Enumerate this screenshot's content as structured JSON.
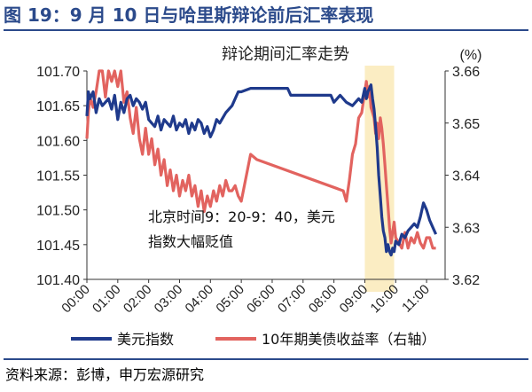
{
  "figure_title": "图 19：9 月 10 日与哈里斯辩论前后汇率表现",
  "source_note": "资料来源：彭博，申万宏源研究",
  "colors": {
    "title": "#2b4a8b",
    "dxy": "#1f3a8c",
    "yield": "#e2635f",
    "band": "#fbedc3",
    "axis": "#333333"
  },
  "chart_data": {
    "type": "line",
    "title": "辩论期间汇率走势",
    "right_unit": "(%)",
    "x_ticks": [
      "00:00",
      "01:00",
      "02:00",
      "03:00",
      "04:00",
      "05:00",
      "06:00",
      "07:00",
      "08:00",
      "09:00",
      "10:00",
      "11:00"
    ],
    "xlim": [
      0,
      11.6
    ],
    "y_left": {
      "ticks": [
        "101.70",
        "101.65",
        "101.60",
        "101.55",
        "101.50",
        "101.45",
        "101.40"
      ],
      "lim": [
        101.4,
        101.7
      ]
    },
    "y_right": {
      "ticks": [
        "3.66",
        "3.65",
        "3.64",
        "3.63",
        "3.62"
      ],
      "lim": [
        3.62,
        3.66
      ]
    },
    "highlight": {
      "x_from": 9.0,
      "x_to": 9.95
    },
    "annotation": [
      "北京时间9：20-9：40，美元",
      "指数大幅贬值"
    ],
    "legend": "bottom",
    "series": [
      {
        "name": "美元指数",
        "axis": "left",
        "x": [
          0.0,
          0.05,
          0.1,
          0.15,
          0.2,
          0.25,
          0.3,
          0.4,
          0.5,
          0.6,
          0.7,
          0.8,
          0.9,
          1.0,
          1.1,
          1.2,
          1.3,
          1.4,
          1.5,
          1.6,
          1.7,
          1.8,
          1.9,
          2.0,
          2.1,
          2.2,
          2.3,
          2.4,
          2.5,
          2.6,
          2.7,
          2.8,
          2.9,
          3.0,
          3.1,
          3.2,
          3.3,
          3.4,
          3.5,
          3.6,
          3.7,
          3.8,
          3.9,
          4.0,
          4.1,
          4.2,
          4.3,
          4.5,
          4.7,
          4.9,
          5.0,
          5.3,
          5.6,
          5.9,
          6.2,
          6.5,
          6.6,
          7.0,
          7.5,
          7.9,
          8.0,
          8.2,
          8.4,
          8.6,
          8.8,
          8.9,
          9.0,
          9.05,
          9.1,
          9.15,
          9.2,
          9.25,
          9.3,
          9.35,
          9.4,
          9.45,
          9.5,
          9.55,
          9.6,
          9.65,
          9.7,
          9.75,
          9.8,
          9.85,
          9.9,
          9.95,
          10.0,
          10.1,
          10.2,
          10.3,
          10.4,
          10.5,
          10.6,
          10.7,
          10.8,
          10.9,
          11.0,
          11.1,
          11.2,
          11.3
        ],
        "values": [
          101.635,
          101.67,
          101.66,
          101.665,
          101.67,
          101.655,
          101.64,
          101.66,
          101.65,
          101.655,
          101.66,
          101.645,
          101.665,
          101.63,
          101.655,
          101.64,
          101.66,
          101.665,
          101.65,
          101.66,
          101.655,
          101.645,
          101.655,
          101.63,
          101.625,
          101.62,
          101.635,
          101.615,
          101.63,
          101.625,
          101.62,
          101.635,
          101.615,
          101.625,
          101.62,
          101.63,
          101.61,
          101.625,
          101.615,
          101.63,
          101.625,
          101.61,
          101.62,
          101.605,
          101.615,
          101.63,
          101.625,
          101.64,
          101.65,
          101.67,
          101.67,
          101.675,
          101.675,
          101.675,
          101.675,
          101.675,
          101.665,
          101.665,
          101.665,
          101.665,
          101.655,
          101.665,
          101.655,
          101.65,
          101.66,
          101.655,
          101.675,
          101.66,
          101.67,
          101.675,
          101.68,
          101.66,
          101.645,
          101.62,
          101.59,
          101.55,
          101.52,
          101.49,
          101.47,
          101.46,
          101.44,
          101.45,
          101.44,
          101.435,
          101.445,
          101.44,
          101.455,
          101.45,
          101.465,
          101.46,
          101.47,
          101.475,
          101.48,
          101.475,
          101.49,
          101.51,
          101.5,
          101.485,
          101.475,
          101.465
        ]
      },
      {
        "name": "10年期美债收益率（右轴）",
        "axis": "right",
        "x": [
          0.0,
          0.05,
          0.1,
          0.2,
          0.3,
          0.4,
          0.5,
          0.6,
          0.7,
          0.8,
          0.9,
          1.0,
          1.1,
          1.2,
          1.3,
          1.4,
          1.5,
          1.6,
          1.7,
          1.8,
          1.9,
          2.0,
          2.1,
          2.2,
          2.3,
          2.4,
          2.5,
          2.6,
          2.7,
          2.8,
          2.9,
          3.0,
          3.1,
          3.2,
          3.3,
          3.4,
          3.5,
          3.6,
          3.7,
          3.8,
          3.9,
          4.0,
          4.1,
          4.2,
          4.3,
          4.4,
          4.5,
          4.6,
          4.7,
          4.8,
          4.9,
          5.0,
          5.1,
          5.3,
          5.5,
          8.3,
          8.4,
          8.5,
          8.6,
          8.7,
          8.8,
          8.9,
          9.0,
          9.05,
          9.1,
          9.15,
          9.2,
          9.25,
          9.3,
          9.35,
          9.4,
          9.45,
          9.5,
          9.55,
          9.6,
          9.65,
          9.7,
          9.75,
          9.8,
          9.85,
          9.9,
          9.95,
          10.0,
          10.1,
          10.2,
          10.3,
          10.4,
          10.5,
          10.6,
          10.7,
          10.8,
          10.9,
          11.0,
          11.1,
          11.2,
          11.3
        ],
        "values": [
          3.647,
          3.652,
          3.655,
          3.653,
          3.656,
          3.66,
          3.66,
          3.655,
          3.66,
          3.658,
          3.66,
          3.657,
          3.66,
          3.654,
          3.656,
          3.651,
          3.648,
          3.653,
          3.647,
          3.644,
          3.649,
          3.644,
          3.647,
          3.642,
          3.645,
          3.64,
          3.643,
          3.638,
          3.641,
          3.637,
          3.64,
          3.636,
          3.639,
          3.637,
          3.64,
          3.636,
          3.638,
          3.634,
          3.637,
          3.633,
          3.636,
          3.634,
          3.637,
          3.635,
          3.638,
          3.636,
          3.639,
          3.637,
          3.637,
          3.638,
          3.636,
          3.635,
          3.638,
          3.644,
          3.643,
          3.637,
          3.635,
          3.639,
          3.644,
          3.646,
          3.651,
          3.652,
          3.656,
          3.658,
          3.655,
          3.657,
          3.653,
          3.652,
          3.651,
          3.648,
          3.65,
          3.647,
          3.651,
          3.649,
          3.646,
          3.642,
          3.638,
          3.634,
          3.63,
          3.627,
          3.629,
          3.631,
          3.628,
          3.627,
          3.626,
          3.629,
          3.626,
          3.628,
          3.627,
          3.629,
          3.627,
          3.626,
          3.628,
          3.628,
          3.626,
          3.626
        ]
      }
    ]
  }
}
